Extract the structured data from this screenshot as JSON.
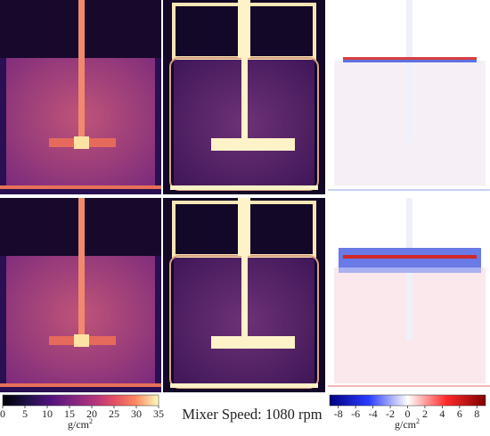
{
  "left_colorbar": {
    "lim": [
      0,
      35
    ],
    "ticks": [
      0,
      5,
      10,
      15,
      20,
      25,
      30,
      35
    ],
    "unit": "g/cm",
    "unit_power": "2"
  },
  "caption": "Mixer Speed: 1080 rpm",
  "right_colorbar": {
    "lim": [
      -9,
      9
    ],
    "ticks": [
      -8,
      -6,
      -4,
      -2,
      0,
      2,
      4,
      6,
      8
    ],
    "unit": "g/cm",
    "unit_power": "2"
  }
}
